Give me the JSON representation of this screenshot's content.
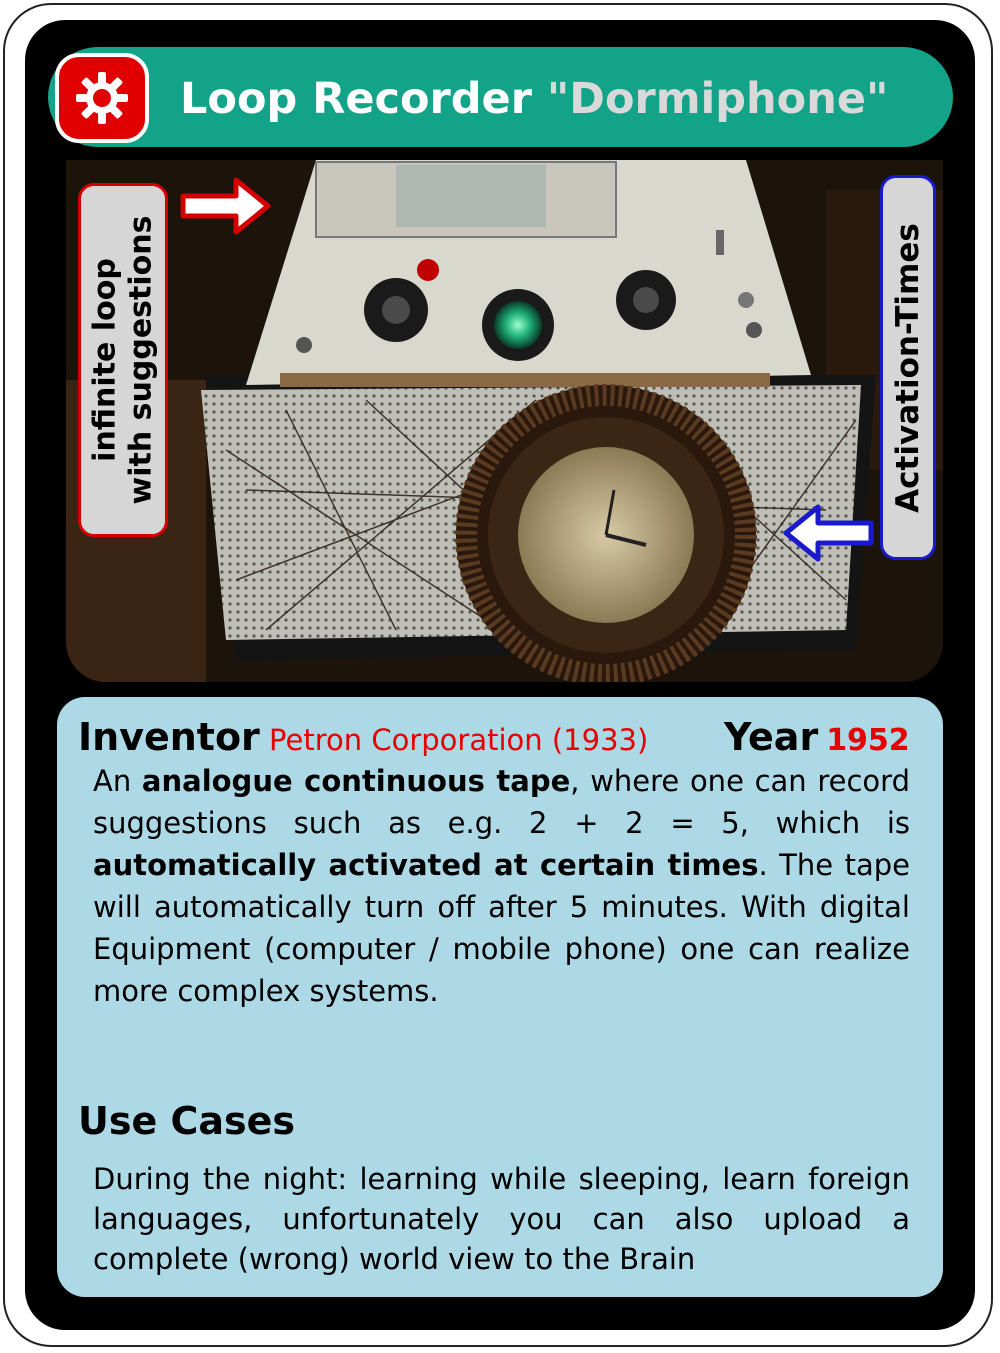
{
  "card": {
    "title": "Loop Recorder",
    "subtitle": "\"Dormiphone\"",
    "badge_icon": "gear-icon",
    "left_label_line1": "infinite loop",
    "left_label_line2": "with suggestions",
    "right_label": "Activation-Times",
    "inventor_label": "Inventor",
    "inventor_value": "Petron Corporation (1933)",
    "year_label": "Year",
    "year_value": "1952",
    "description": {
      "p1": "An ",
      "b1": "analogue continuous tape",
      "p2": ", where one can record suggestions such as e.g. 2 + 2 = 5, which is ",
      "b2": "automatically activated at certain times",
      "p3": ". The tape will automatically turn off after 5 minutes. With digital Equipment (computer / mobile phone) one can realize more complex systems."
    },
    "use_cases_title": "Use Cases",
    "use_cases_text": "During the night: learning while sleeping, learn foreign languages, unfortunately  you  can also upload a complete (wrong) world view to the Brain"
  },
  "colors": {
    "title_bar": "#12a388",
    "badge": "#e10000",
    "info_panel": "#add9e6",
    "accent_red": "#e60000",
    "accent_blue": "#1a1acc"
  }
}
